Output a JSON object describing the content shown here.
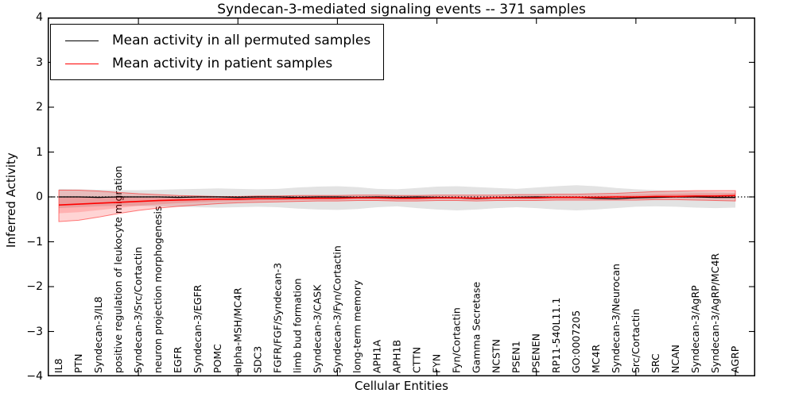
{
  "chart_data": {
    "type": "line",
    "title": "Syndecan-3-mediated signaling events -- 371 samples",
    "xlabel": "Cellular Entities",
    "ylabel": "Inferred Activity",
    "ylim": [
      -4,
      4
    ],
    "ytick_labels": [
      "4",
      "3",
      "2",
      "1",
      "0",
      "−1",
      "−2",
      "−3",
      "−4"
    ],
    "x_major_tick_indices": [
      4,
      9,
      14,
      19,
      24,
      29,
      34
    ],
    "grid": false,
    "legend_position": "upper left",
    "categories": [
      "IL8",
      "PTN",
      "Syndecan-3/IL8",
      "positive regulation of leukocyte migration",
      "Syndecan-3/Src/Cortactin",
      "neuron projection morphogenesis",
      "EGFR",
      "Syndecan-3/EGFR",
      "POMC",
      "alpha-MSH/MC4R",
      "SDC3",
      "FGFR/FGF/Syndecan-3",
      "limb bud formation",
      "Syndecan-3/CASK",
      "Syndecan-3/Fyn/Cortactin",
      "long-term memory",
      "APH1A",
      "APH1B",
      "CTTN",
      "FYN",
      "Fyn/Cortactin",
      "Gamma Secretase",
      "NCSTN",
      "PSEN1",
      "PSENEN",
      "RP11-540L11.1",
      "GO:0007205",
      "MC4R",
      "Syndecan-3/Neurocan",
      "Src/Cortactin",
      "SRC",
      "NCAN",
      "Syndecan-3/AgRP",
      "Syndecan-3/AgRP/MC4R",
      "AGRP"
    ],
    "series": [
      {
        "name": "Mean activity in all permuted samples",
        "color": "#000000",
        "values": [
          0.0,
          0.0,
          -0.01,
          0.0,
          0.0,
          0.0,
          -0.01,
          0.0,
          0.0,
          -0.01,
          0.0,
          0.0,
          -0.01,
          0.0,
          0.0,
          -0.01,
          0.0,
          -0.01,
          0.0,
          -0.01,
          -0.02,
          -0.04,
          -0.02,
          -0.01,
          0.0,
          -0.01,
          -0.01,
          -0.03,
          -0.04,
          -0.02,
          -0.01,
          0.0,
          0.0,
          -0.01,
          -0.01
        ]
      },
      {
        "name": "Mean activity in patient samples",
        "color": "#ff0000",
        "values": [
          -0.18,
          -0.16,
          -0.14,
          -0.12,
          -0.1,
          -0.08,
          -0.07,
          -0.06,
          -0.05,
          -0.05,
          -0.04,
          -0.04,
          -0.03,
          -0.03,
          -0.03,
          -0.02,
          -0.02,
          -0.03,
          -0.03,
          -0.02,
          -0.02,
          -0.03,
          -0.02,
          -0.02,
          -0.02,
          -0.01,
          -0.01,
          -0.01,
          0.0,
          0.0,
          0.01,
          0.01,
          0.02,
          0.02,
          0.03
        ]
      }
    ],
    "bands": [
      {
        "series": "Mean activity in all permuted samples",
        "color": "#000000",
        "fill_opacity": 0.11,
        "upper": [
          0.18,
          0.17,
          0.16,
          0.15,
          0.15,
          0.16,
          0.17,
          0.18,
          0.19,
          0.18,
          0.17,
          0.18,
          0.21,
          0.23,
          0.24,
          0.22,
          0.18,
          0.17,
          0.2,
          0.23,
          0.24,
          0.22,
          0.2,
          0.18,
          0.21,
          0.24,
          0.26,
          0.24,
          0.2,
          0.17,
          0.15,
          0.13,
          0.12,
          0.11,
          0.1
        ],
        "lower": [
          -0.25,
          -0.23,
          -0.21,
          -0.2,
          -0.2,
          -0.21,
          -0.22,
          -0.23,
          -0.24,
          -0.23,
          -0.22,
          -0.23,
          -0.26,
          -0.28,
          -0.29,
          -0.27,
          -0.23,
          -0.21,
          -0.25,
          -0.28,
          -0.3,
          -0.28,
          -0.25,
          -0.23,
          -0.25,
          -0.28,
          -0.3,
          -0.28,
          -0.25,
          -0.22,
          -0.21,
          -0.22,
          -0.24,
          -0.25,
          -0.24
        ]
      },
      {
        "series": "Mean activity in patient samples",
        "color": "#ff0000",
        "fill_opacity": 0.17,
        "upper": [
          0.15,
          0.15,
          0.13,
          0.1,
          0.07,
          0.05,
          0.03,
          0.02,
          0.01,
          0.01,
          0.02,
          0.02,
          0.03,
          0.03,
          0.03,
          0.04,
          0.04,
          0.03,
          0.03,
          0.04,
          0.04,
          0.04,
          0.04,
          0.05,
          0.05,
          0.06,
          0.06,
          0.07,
          0.08,
          0.1,
          0.12,
          0.13,
          0.14,
          0.14,
          0.14
        ],
        "lower": [
          -0.55,
          -0.52,
          -0.45,
          -0.37,
          -0.3,
          -0.25,
          -0.21,
          -0.18,
          -0.15,
          -0.13,
          -0.12,
          -0.11,
          -0.1,
          -0.09,
          -0.09,
          -0.08,
          -0.08,
          -0.09,
          -0.09,
          -0.08,
          -0.08,
          -0.09,
          -0.08,
          -0.08,
          -0.08,
          -0.07,
          -0.07,
          -0.07,
          -0.07,
          -0.07,
          -0.06,
          -0.06,
          -0.07,
          -0.08,
          -0.09
        ]
      }
    ],
    "zero_line": {
      "y": 0,
      "style": "dotted",
      "color": "#000000"
    }
  }
}
